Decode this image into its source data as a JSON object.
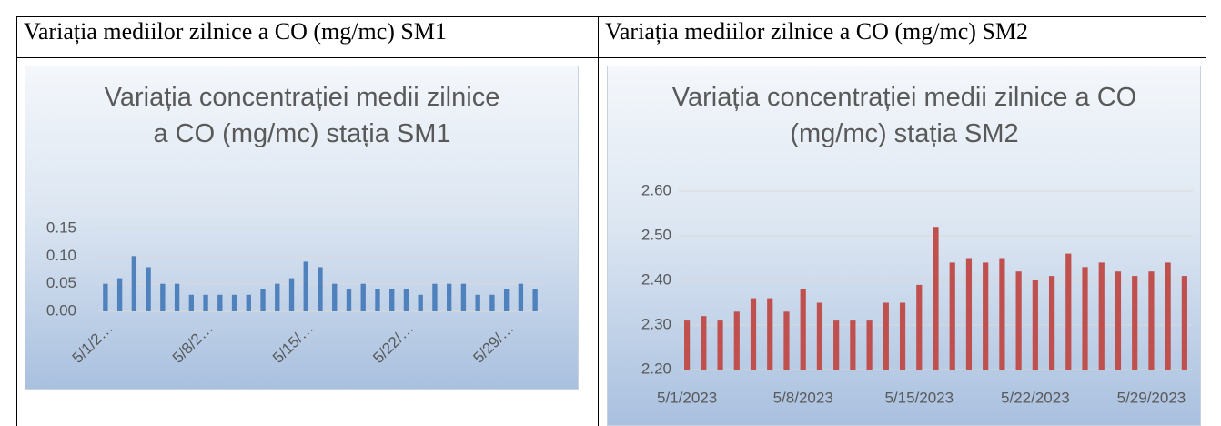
{
  "table": {
    "headers": [
      "Variația mediilor zilnice a CO (mg/mc) SM1",
      "Variația mediilor zilnice a CO (mg/mc) SM2"
    ]
  },
  "chart_data": [
    {
      "type": "bar",
      "title": "Variația concentrației medii zilnice a CO (mg/mc) stația SM1",
      "categories": [
        "5/1/2…",
        null,
        null,
        null,
        null,
        null,
        null,
        "5/8/2…",
        null,
        null,
        null,
        null,
        null,
        null,
        "5/15/…",
        null,
        null,
        null,
        null,
        null,
        null,
        "5/22/…",
        null,
        null,
        null,
        null,
        null,
        null,
        "5/29/…",
        null,
        null
      ],
      "values": [
        0.05,
        0.06,
        0.1,
        0.08,
        0.05,
        0.05,
        0.03,
        0.03,
        0.03,
        0.03,
        0.03,
        0.04,
        0.05,
        0.06,
        0.09,
        0.08,
        0.05,
        0.04,
        0.05,
        0.04,
        0.04,
        0.04,
        0.03,
        0.05,
        0.05,
        0.05,
        0.03,
        0.03,
        0.04,
        0.05,
        0.04
      ],
      "color": "#4f81bd",
      "ylim": [
        0,
        0.15
      ],
      "yticks": [
        {
          "value": 0,
          "label": "0.00"
        },
        {
          "value": 0.05,
          "label": "0.05"
        },
        {
          "value": 0.1,
          "label": "0.10"
        },
        {
          "value": 0.15,
          "label": "0.15"
        }
      ],
      "grid": true,
      "rotate_x_labels": true
    },
    {
      "type": "bar",
      "title": "Variația concentrației medii zilnice a CO (mg/mc) stația SM2",
      "categories": [
        "5/1/2023",
        null,
        null,
        null,
        null,
        null,
        null,
        "5/8/2023",
        null,
        null,
        null,
        null,
        null,
        null,
        "5/15/2023",
        null,
        null,
        null,
        null,
        null,
        null,
        "5/22/2023",
        null,
        null,
        null,
        null,
        null,
        null,
        "5/29/2023",
        null,
        null
      ],
      "values": [
        2.31,
        2.32,
        2.31,
        2.33,
        2.36,
        2.36,
        2.33,
        2.38,
        2.35,
        2.31,
        2.31,
        2.31,
        2.35,
        2.35,
        2.39,
        2.52,
        2.44,
        2.45,
        2.44,
        2.45,
        2.42,
        2.4,
        2.41,
        2.46,
        2.43,
        2.44,
        2.42,
        2.41,
        2.42,
        2.44,
        2.41
      ],
      "color": "#c0504d",
      "ylim": [
        2.2,
        2.6
      ],
      "yticks": [
        {
          "value": 2.2,
          "label": "2.20"
        },
        {
          "value": 2.3,
          "label": "2.30"
        },
        {
          "value": 2.4,
          "label": "2.40"
        },
        {
          "value": 2.5,
          "label": "2.50"
        },
        {
          "value": 2.6,
          "label": "2.60"
        }
      ],
      "grid": true,
      "rotate_x_labels": false
    }
  ]
}
